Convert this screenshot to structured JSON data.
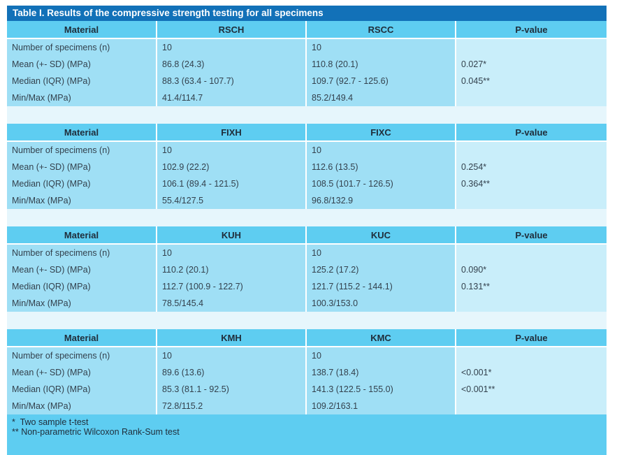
{
  "title": "Table I. Results of the compressive strength testing for all specimens",
  "blocks": [
    {
      "headers": [
        "Material",
        "RSCH",
        "RSCC",
        "P-value"
      ],
      "rows": [
        [
          "Number of specimens (n)",
          "10",
          "10",
          ""
        ],
        [
          "Mean (+- SD) (MPa)",
          "86.8 (24.3)",
          "110.8 (20.1)",
          "0.027*"
        ],
        [
          "Median (IQR) (MPa)",
          "88.3 (63.4 - 107.7)",
          "109.7 (92.7 - 125.6)",
          "0.045**"
        ],
        [
          "Min/Max (MPa)",
          "41.4/114.7",
          "85.2/149.4",
          ""
        ]
      ]
    },
    {
      "headers": [
        "Material",
        "FIXH",
        "FIXC",
        "P-value"
      ],
      "rows": [
        [
          "Number of specimens (n)",
          "10",
          "10",
          ""
        ],
        [
          "Mean (+- SD) (MPa)",
          "102.9 (22.2)",
          "112.6 (13.5)",
          "0.254*"
        ],
        [
          "Median (IQR) (MPa)",
          "106.1 (89.4 - 121.5)",
          "108.5 (101.7 - 126.5)",
          "0.364**"
        ],
        [
          "Min/Max (MPa)",
          "55.4/127.5",
          "96.8/132.9",
          ""
        ]
      ]
    },
    {
      "headers": [
        "Material",
        "KUH",
        "KUC",
        "P-value"
      ],
      "rows": [
        [
          "Number of specimens (n)",
          "10",
          "10",
          ""
        ],
        [
          "Mean (+- SD) (MPa)",
          "110.2 (20.1)",
          "125.2 (17.2)",
          "0.090*"
        ],
        [
          "Median (IQR) (MPa)",
          "112.7 (100.9 - 122.7)",
          "121.7 (115.2 - 144.1)",
          "0.131**"
        ],
        [
          "Min/Max (MPa)",
          "78.5/145.4",
          "100.3/153.0",
          ""
        ]
      ]
    },
    {
      "headers": [
        "Material",
        "KMH",
        "KMC",
        "P-value"
      ],
      "rows": [
        [
          "Number of specimens (n)",
          "10",
          "10",
          ""
        ],
        [
          "Mean (+- SD) (MPa)",
          "89.6 (13.6)",
          "138.7 (18.4)",
          "<0.001*"
        ],
        [
          "Median (IQR) (MPa)",
          "85.3 (81.1 - 92.5)",
          "141.3 (122.5 - 155.0)",
          "<0.001**"
        ],
        [
          "Min/Max (MPa)",
          "72.8/115.2",
          "109.2/163.1",
          ""
        ]
      ]
    }
  ],
  "footnotes": [
    "*  Two sample t-test",
    "** Non-parametric Wilcoxon Rank-Sum test"
  ],
  "colors": {
    "title_bg": "#1271b8",
    "header_bg": "#5ecdf1",
    "cell_bg": "#9fdff5",
    "pvalue_bg": "#c9eefa",
    "spacer_bg": "#e6f6fc"
  }
}
